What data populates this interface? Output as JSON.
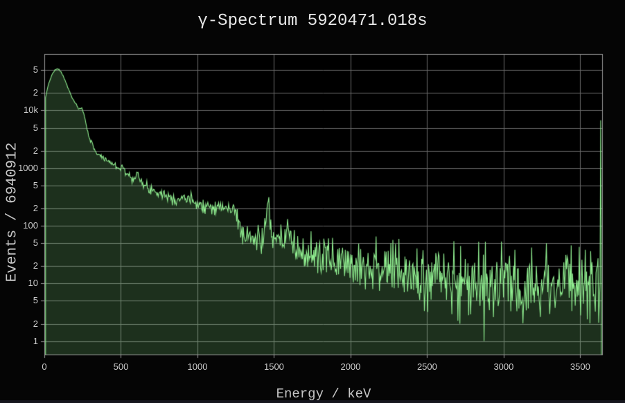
{
  "window": {
    "background": "#050505",
    "bottom_strip_color": "#16161e"
  },
  "chart_data": {
    "type": "area",
    "title": "γ-Spectrum 5920471.018s",
    "xlabel": "Energy / keV",
    "ylabel": "Events / 6940912",
    "grid": true,
    "legend": "none",
    "colors": {
      "background": "#000000",
      "plot_bg": "#000000",
      "grid": "#6a6a6a",
      "axis_line": "#9a9a9a",
      "title_text": "#e8e8e8",
      "tick_text": "#cccccc",
      "axis_title_text": "#c6c6c6",
      "line": "#90EE90",
      "fill": "rgba(144,238,144,0.2)"
    },
    "x_axis": {
      "range_keV": [
        0,
        3643
      ],
      "tick_values": [
        0,
        500,
        1000,
        1500,
        2000,
        2500,
        3000,
        3500
      ],
      "tick_labels": [
        "0",
        "500",
        "1000",
        "1500",
        "2000",
        "2500",
        "3000",
        "3500"
      ]
    },
    "y_axis": {
      "scale": "log",
      "range": [
        0.585,
        95000
      ],
      "ticks": [
        [
          50000,
          "5"
        ],
        [
          20000,
          "2"
        ],
        [
          10000,
          "10k"
        ],
        [
          5000,
          "5"
        ],
        [
          2000,
          "2"
        ],
        [
          1000,
          "1000"
        ],
        [
          500,
          "5"
        ],
        [
          200,
          "2"
        ],
        [
          100,
          "100"
        ],
        [
          50,
          "5"
        ],
        [
          20,
          "2"
        ],
        [
          10,
          "10"
        ],
        [
          5,
          "5"
        ],
        [
          2,
          "2"
        ],
        [
          1,
          "1"
        ]
      ]
    },
    "series": [
      {
        "name": "gamma-spectrum",
        "line_color": "#90EE90",
        "fill_color": "rgba(144,238,144,0.2)",
        "points_keV_events": [
          [
            8,
            16000
          ],
          [
            15,
            21000
          ],
          [
            25,
            27000
          ],
          [
            40,
            36000
          ],
          [
            55,
            44000
          ],
          [
            70,
            50000
          ],
          [
            85,
            52500
          ],
          [
            95,
            51500
          ],
          [
            110,
            46000
          ],
          [
            125,
            38500
          ],
          [
            140,
            30500
          ],
          [
            155,
            24500
          ],
          [
            170,
            19500
          ],
          [
            185,
            15800
          ],
          [
            200,
            13800
          ],
          [
            215,
            11600
          ],
          [
            225,
            10400
          ],
          [
            238,
            10800
          ],
          [
            250,
            10500
          ],
          [
            262,
            7800
          ],
          [
            275,
            5400
          ],
          [
            288,
            3900
          ],
          [
            300,
            3000
          ],
          [
            315,
            2500
          ],
          [
            330,
            2100
          ],
          [
            345,
            1750
          ],
          [
            360,
            1700
          ],
          [
            375,
            1560
          ],
          [
            395,
            1430
          ],
          [
            420,
            1320
          ],
          [
            450,
            1160
          ],
          [
            480,
            1030
          ],
          [
            500,
            980
          ],
          [
            508,
            1140
          ],
          [
            516,
            1050
          ],
          [
            530,
            830
          ],
          [
            555,
            720
          ],
          [
            575,
            660
          ],
          [
            585,
            700
          ],
          [
            598,
            800
          ],
          [
            609,
            870
          ],
          [
            618,
            700
          ],
          [
            630,
            540
          ],
          [
            650,
            490
          ],
          [
            680,
            460
          ],
          [
            710,
            415
          ],
          [
            740,
            385
          ],
          [
            758,
            395
          ],
          [
            775,
            360
          ],
          [
            810,
            325
          ],
          [
            845,
            300
          ],
          [
            880,
            290
          ],
          [
            911,
            335
          ],
          [
            930,
            280
          ],
          [
            950,
            270
          ],
          [
            968,
            290
          ],
          [
            990,
            255
          ],
          [
            1020,
            235
          ],
          [
            1060,
            222
          ],
          [
            1100,
            215
          ],
          [
            1125,
            222
          ],
          [
            1155,
            205
          ],
          [
            1190,
            200
          ],
          [
            1220,
            198
          ],
          [
            1243,
            190
          ],
          [
            1260,
            130
          ],
          [
            1280,
            92
          ],
          [
            1310,
            70
          ],
          [
            1345,
            60
          ],
          [
            1385,
            57
          ],
          [
            1415,
            58
          ],
          [
            1438,
            75
          ],
          [
            1452,
            160
          ],
          [
            1461,
            340
          ],
          [
            1470,
            160
          ],
          [
            1482,
            75
          ],
          [
            1500,
            52
          ],
          [
            1530,
            47
          ],
          [
            1560,
            52
          ],
          [
            1578,
            70
          ],
          [
            1590,
            125
          ],
          [
            1602,
            70
          ],
          [
            1618,
            42
          ],
          [
            1650,
            37
          ],
          [
            1700,
            33
          ],
          [
            1740,
            31
          ],
          [
            1768,
            33
          ],
          [
            1800,
            29
          ],
          [
            1860,
            27
          ],
          [
            1920,
            26
          ],
          [
            1990,
            24
          ],
          [
            2050,
            22.5
          ],
          [
            2110,
            21
          ],
          [
            2160,
            20
          ],
          [
            2210,
            20
          ],
          [
            2260,
            18
          ],
          [
            2310,
            15.5
          ],
          [
            2360,
            14
          ],
          [
            2420,
            12.5
          ],
          [
            2470,
            12
          ],
          [
            2530,
            13
          ],
          [
            2575,
            15
          ],
          [
            2610,
            17
          ],
          [
            2640,
            12
          ],
          [
            2700,
            10.5
          ],
          [
            2780,
            10
          ],
          [
            2870,
            9.8
          ],
          [
            2950,
            10
          ],
          [
            3050,
            10.2
          ],
          [
            3150,
            10.5
          ],
          [
            3250,
            10.3
          ],
          [
            3350,
            10.5
          ],
          [
            3450,
            10.4
          ],
          [
            3550,
            10.5
          ],
          [
            3620,
            10
          ],
          [
            3630,
            10
          ],
          [
            3634,
            13300
          ],
          [
            3638,
            8
          ]
        ],
        "noise": {
          "model": "poisson-lognormal",
          "k": 2.2,
          "seed": 7,
          "samples": 830,
          "clamp_sigma": 2.4,
          "min_value": 1
        },
        "outliers_keV_events": [
          [
            2713,
            2
          ],
          [
            2872,
            1
          ]
        ]
      }
    ]
  }
}
